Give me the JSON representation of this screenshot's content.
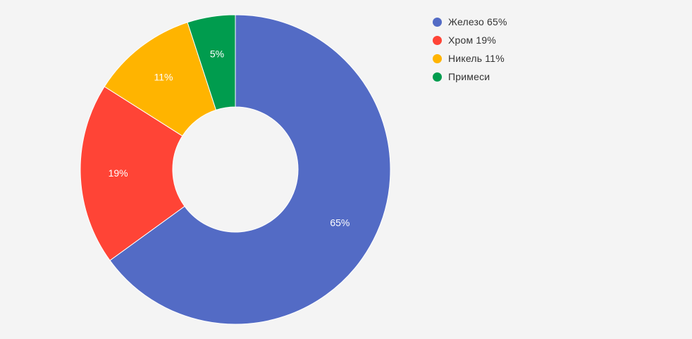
{
  "chart_data": {
    "type": "pie",
    "donut": true,
    "title": "",
    "slices": [
      {
        "name": "Железо 65%",
        "value": 65,
        "label": "65%",
        "color": "#536bc5"
      },
      {
        "name": "Хром 19%",
        "value": 19,
        "label": "19%",
        "color": "#ff4436"
      },
      {
        "name": "Никель 11%",
        "value": 11,
        "label": "11%",
        "color": "#ffb400"
      },
      {
        "name": "Примеси",
        "value": 5,
        "label": "5%",
        "color": "#009c4e"
      }
    ],
    "legend_position": "top-right"
  },
  "legend": {
    "items": [
      {
        "label": "Железо 65%",
        "color": "#536bc5"
      },
      {
        "label": "Хром 19%",
        "color": "#ff4436"
      },
      {
        "label": "Никель 11%",
        "color": "#ffb400"
      },
      {
        "label": "Примеси",
        "color": "#009c4e"
      }
    ]
  }
}
